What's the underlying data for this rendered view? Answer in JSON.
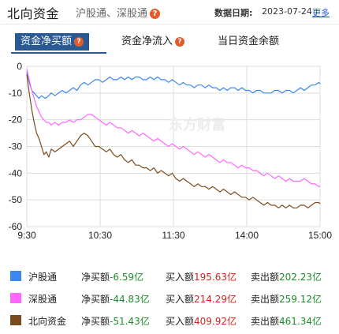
{
  "header": {
    "title": "北向资金",
    "subtitle": "沪股通、深股通",
    "date_label": "数据日期:",
    "date_value": "2023-07-24",
    "more": "更多"
  },
  "tabs": [
    {
      "label": "资金净买额",
      "active": true,
      "has_help": true
    },
    {
      "label": "资金净流入",
      "active": false,
      "has_help": true
    },
    {
      "label": "当日资金余额",
      "active": false,
      "has_help": false
    }
  ],
  "colors": {
    "hgt": "#3b87f0",
    "sgt": "#ff66ff",
    "north": "#7b4b1e",
    "tab_active": "#2a5a93",
    "positive": "#d42020",
    "negative": "#1d8b2d"
  },
  "chart_data": {
    "type": "line",
    "watermark": "东方财富",
    "x_ticks": [
      "9:30",
      "10:30",
      "11:30",
      "14:00",
      "15:00"
    ],
    "y_ticks": [
      0,
      -10,
      -20,
      -30,
      -40,
      -50,
      -60
    ],
    "ylim": [
      -60,
      0
    ],
    "grid": true,
    "series": [
      {
        "name": "沪股通",
        "color": "#3b87f0",
        "x": [
          0,
          2,
          4,
          6,
          8,
          10,
          12,
          15,
          18,
          20,
          23,
          26,
          29,
          32,
          35,
          38,
          41,
          44,
          47,
          50,
          53,
          56,
          59,
          62,
          65,
          68,
          71,
          74,
          77,
          80,
          83,
          86,
          89,
          92,
          95,
          98,
          101,
          104,
          107,
          110,
          113,
          116,
          119,
          122,
          125,
          128,
          131,
          134,
          137,
          140,
          143,
          146,
          149,
          152,
          155,
          158,
          161,
          164,
          167,
          170,
          173,
          176,
          179,
          182,
          185,
          188,
          191,
          194,
          197,
          200,
          203,
          206,
          209,
          212,
          215,
          218,
          221,
          224,
          227,
          230,
          233,
          236,
          239,
          240
        ],
        "values": [
          -2,
          -6,
          -9,
          -10,
          -11,
          -12,
          -11,
          -12,
          -11,
          -10,
          -11,
          -10,
          -9,
          -10,
          -9,
          -8,
          -9,
          -7,
          -6,
          -7,
          -6,
          -5,
          -5,
          -6,
          -5,
          -4,
          -5,
          -5,
          -4,
          -5,
          -4,
          -5,
          -4,
          -4,
          -5,
          -5,
          -4,
          -5,
          -4,
          -5,
          -5,
          -6,
          -5,
          -6,
          -7,
          -6,
          -7,
          -7,
          -8,
          -7,
          -7,
          -8,
          -7,
          -8,
          -8,
          -9,
          -8,
          -9,
          -8,
          -8,
          -9,
          -8,
          -9,
          -9,
          -10,
          -9,
          -9,
          -10,
          -10,
          -10,
          -9,
          -9,
          -10,
          -9,
          -9,
          -10,
          -9,
          -8,
          -9,
          -8,
          -7,
          -7,
          -6,
          -6.59
        ]
      },
      {
        "name": "深股通",
        "color": "#ff66ff",
        "x": [
          0,
          2,
          4,
          6,
          8,
          10,
          12,
          14,
          16,
          18,
          20,
          23,
          26,
          29,
          32,
          35,
          38,
          41,
          44,
          47,
          50,
          53,
          56,
          59,
          62,
          65,
          68,
          71,
          74,
          77,
          80,
          83,
          86,
          89,
          92,
          95,
          98,
          101,
          104,
          107,
          110,
          113,
          116,
          119,
          122,
          125,
          128,
          131,
          134,
          137,
          140,
          143,
          146,
          149,
          152,
          155,
          158,
          161,
          164,
          167,
          170,
          173,
          176,
          179,
          182,
          185,
          188,
          191,
          194,
          197,
          200,
          203,
          206,
          209,
          212,
          215,
          218,
          221,
          224,
          227,
          230,
          233,
          236,
          239,
          240
        ],
        "values": [
          -1,
          -5,
          -9,
          -12,
          -15,
          -17,
          -19,
          -20,
          -21,
          -21,
          -22,
          -21,
          -22,
          -21,
          -21,
          -20,
          -21,
          -20,
          -20,
          -19,
          -18,
          -18,
          -19,
          -20,
          -21,
          -22,
          -21,
          -22,
          -23,
          -23,
          -24,
          -25,
          -24,
          -25,
          -26,
          -25,
          -26,
          -27,
          -28,
          -27,
          -28,
          -29,
          -30,
          -29,
          -30,
          -31,
          -30,
          -31,
          -32,
          -33,
          -32,
          -33,
          -34,
          -33,
          -34,
          -35,
          -36,
          -35,
          -36,
          -36,
          -37,
          -38,
          -37,
          -38,
          -38,
          -39,
          -39,
          -40,
          -41,
          -40,
          -41,
          -42,
          -41,
          -42,
          -43,
          -42,
          -43,
          -43,
          -43,
          -42,
          -43,
          -44,
          -44,
          -45,
          -44.83
        ]
      },
      {
        "name": "北向资金",
        "color": "#7b4b1e",
        "x": [
          0,
          2,
          4,
          6,
          8,
          10,
          12,
          14,
          16,
          18,
          20,
          23,
          26,
          29,
          32,
          35,
          38,
          41,
          44,
          47,
          50,
          53,
          56,
          59,
          62,
          65,
          68,
          71,
          74,
          77,
          80,
          83,
          86,
          89,
          92,
          95,
          98,
          101,
          104,
          107,
          110,
          113,
          116,
          119,
          122,
          125,
          128,
          131,
          134,
          137,
          140,
          143,
          146,
          149,
          152,
          155,
          158,
          161,
          164,
          167,
          170,
          173,
          176,
          179,
          182,
          185,
          188,
          191,
          194,
          197,
          200,
          203,
          206,
          209,
          212,
          215,
          218,
          221,
          224,
          227,
          230,
          233,
          236,
          239,
          240
        ],
        "values": [
          -3,
          -10,
          -16,
          -21,
          -25,
          -27,
          -30,
          -33,
          -32,
          -34,
          -31,
          -32,
          -31,
          -30,
          -29,
          -28,
          -30,
          -28,
          -26,
          -25,
          -26,
          -28,
          -30,
          -30,
          -31,
          -32,
          -31,
          -33,
          -34,
          -33,
          -35,
          -36,
          -35,
          -37,
          -37,
          -38,
          -38,
          -39,
          -38,
          -40,
          -39,
          -40,
          -41,
          -40,
          -42,
          -43,
          -42,
          -43,
          -44,
          -45,
          -44,
          -45,
          -45,
          -46,
          -45,
          -46,
          -47,
          -46,
          -47,
          -48,
          -47,
          -48,
          -49,
          -49,
          -50,
          -49,
          -50,
          -51,
          -52,
          -51,
          -52,
          -52,
          -53,
          -52,
          -53,
          -52,
          -53,
          -53,
          -52,
          -52,
          -53,
          -52,
          -51,
          -51,
          -51.43
        ]
      }
    ]
  },
  "legend": [
    {
      "name": "沪股通",
      "swatch": "#3b87f0",
      "net_label": "净买额",
      "net_value": "-6.59亿",
      "buy_label": "买入额",
      "buy_value": "195.63亿",
      "sell_label": "卖出额",
      "sell_value": "202.23亿"
    },
    {
      "name": "深股通",
      "swatch": "#ff66ff",
      "net_label": "净买额",
      "net_value": "-44.83亿",
      "buy_label": "买入额",
      "buy_value": "214.29亿",
      "sell_label": "卖出额",
      "sell_value": "259.12亿"
    },
    {
      "name": "北向资金",
      "swatch": "#7b4b1e",
      "net_label": "净买额",
      "net_value": "-51.43亿",
      "buy_label": "买入额",
      "buy_value": "409.92亿",
      "sell_label": "卖出额",
      "sell_value": "461.34亿"
    }
  ]
}
